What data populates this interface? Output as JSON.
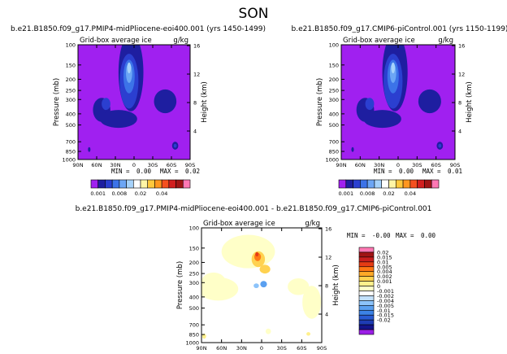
{
  "figure_title": "SON",
  "colors": {
    "top_levels": [
      "#a020f0",
      "#1e1ea0",
      "#2b3fd0",
      "#3c73e8",
      "#6ca6f5",
      "#a6d2fb",
      "#ffffff",
      "#fff5a6",
      "#ffc83c",
      "#ff961e",
      "#f5501e",
      "#d21e1e",
      "#a01414",
      "#ff78b4"
    ],
    "diff_levels": [
      "#9b1ee6",
      "#14148c",
      "#1e3cb4",
      "#285ad2",
      "#3c82e6",
      "#5aa0f0",
      "#8cc3fa",
      "#c3e1fc",
      "#ffffff",
      "#ffffc8",
      "#fff08c",
      "#ffd250",
      "#ffaa28",
      "#ff7814",
      "#e63c14",
      "#c81e1e",
      "#a01414",
      "#ff78b4"
    ]
  },
  "chart_data": [
    {
      "type": "contour",
      "title": "b.e21.B1850.f09_g17.PMIP4-midPliocene-eoi400.001 (yrs 1450-1499)",
      "left_label": "Grid-box average ice",
      "right_label": "g/kg",
      "xlabel": "",
      "ylabel": "Pressure (mb)",
      "y2label": "Height (km)",
      "x_ticks": [
        "90N",
        "60N",
        "30N",
        "0",
        "30S",
        "60S",
        "90S"
      ],
      "y_ticks": [
        1000,
        850,
        700,
        500,
        400,
        300,
        250,
        200,
        150,
        100
      ],
      "y2_ticks": [
        4,
        8,
        12,
        16
      ],
      "min_label": "MIN =",
      "min": "0.00",
      "max_label": "MAX =",
      "max": "0.02",
      "colorbar_labels": [
        "0.001",
        "0.008",
        "0.02",
        "0.04"
      ],
      "blobs": [
        {
          "x": -5,
          "p": 230,
          "rx": 20,
          "rp": 300,
          "level": 1
        },
        {
          "x": -8,
          "p": 240,
          "rx": 15,
          "rp": 240,
          "level": 2
        },
        {
          "x": -8,
          "p": 200,
          "rx": 9,
          "rp": 130,
          "level": 3
        },
        {
          "x": -8,
          "p": 180,
          "rx": 5,
          "rp": 70,
          "level": 4
        },
        {
          "x": -8,
          "p": 160,
          "rx": 3,
          "rp": 35,
          "level": 5
        },
        {
          "x": -52,
          "p": 380,
          "rx": 14,
          "rp": 180,
          "level": 1
        },
        {
          "x": -45,
          "p": 330,
          "rx": 7,
          "rp": 80,
          "level": 2
        },
        {
          "x": 50,
          "p": 320,
          "rx": 18,
          "rp": 150,
          "level": 1
        },
        {
          "x": -25,
          "p": 450,
          "rx": 30,
          "rp": 160,
          "level": 1
        },
        {
          "x": 66,
          "p": 760,
          "rx": 5,
          "rp": 120,
          "level": 1
        },
        {
          "x": 66,
          "p": 760,
          "rx": 2.5,
          "rp": 60,
          "level": 2
        },
        {
          "x": -72,
          "p": 820,
          "rx": 2,
          "rp": 80,
          "level": 1
        }
      ]
    },
    {
      "type": "contour",
      "title": "b.e21.B1850.f09_g17.CMIP6-piControl.001 (yrs 1150-1199)",
      "left_label": "Grid-box average ice",
      "right_label": "g/kg",
      "xlabel": "",
      "ylabel": "Pressure (mb)",
      "y2label": "Height (km)",
      "x_ticks": [
        "90N",
        "60N",
        "30N",
        "0",
        "30S",
        "60S",
        "90S"
      ],
      "y_ticks": [
        1000,
        850,
        700,
        500,
        400,
        300,
        250,
        200,
        150,
        100
      ],
      "y2_ticks": [
        4,
        8,
        12,
        16
      ],
      "min_label": "MIN =",
      "min": "0.00",
      "max_label": "MAX =",
      "max": "0.01",
      "colorbar_labels": [
        "0.001",
        "0.008",
        "0.02",
        "0.04"
      ],
      "blobs": [
        {
          "x": -5,
          "p": 230,
          "rx": 20,
          "rp": 300,
          "level": 1
        },
        {
          "x": -8,
          "p": 240,
          "rx": 15,
          "rp": 240,
          "level": 2
        },
        {
          "x": -8,
          "p": 200,
          "rx": 9,
          "rp": 130,
          "level": 3
        },
        {
          "x": -8,
          "p": 180,
          "rx": 5,
          "rp": 70,
          "level": 4
        },
        {
          "x": -8,
          "p": 160,
          "rx": 3,
          "rp": 35,
          "level": 5
        },
        {
          "x": -52,
          "p": 380,
          "rx": 14,
          "rp": 180,
          "level": 1
        },
        {
          "x": -45,
          "p": 330,
          "rx": 7,
          "rp": 80,
          "level": 2
        },
        {
          "x": 50,
          "p": 320,
          "rx": 18,
          "rp": 150,
          "level": 1
        },
        {
          "x": -25,
          "p": 450,
          "rx": 30,
          "rp": 160,
          "level": 1
        },
        {
          "x": 66,
          "p": 760,
          "rx": 5,
          "rp": 120,
          "level": 1
        },
        {
          "x": 66,
          "p": 760,
          "rx": 2.5,
          "rp": 60,
          "level": 2
        },
        {
          "x": -72,
          "p": 820,
          "rx": 2,
          "rp": 80,
          "level": 1
        }
      ]
    },
    {
      "type": "contour",
      "title": "b.e21.B1850.f09_g17.PMIP4-midPliocene-eoi400.001 - b.e21.B1850.f09_g17.CMIP6-piControl.001",
      "left_label": "Grid-box average ice",
      "right_label": "g/kg",
      "xlabel": "",
      "ylabel": "Pressure (mb)",
      "y2label": "Height (km)",
      "x_ticks": [
        "90N",
        "60N",
        "30N",
        "0",
        "30S",
        "60S",
        "90S"
      ],
      "y_ticks": [
        1000,
        850,
        700,
        500,
        400,
        300,
        250,
        200,
        150,
        100
      ],
      "y2_ticks": [
        4,
        8,
        12,
        16
      ],
      "min_label": "MIN =",
      "min": "-0.00",
      "max_label": "MAX =",
      "max": "0.00",
      "colorbar_labels": [
        "0.02",
        "0.015",
        "0.01",
        "0.005",
        "0.004",
        "0.002",
        "0.001",
        "0",
        "-0.001",
        "-0.002",
        "-0.004",
        "-0.005",
        "-0.01",
        "-0.015",
        "-0.02"
      ],
      "background_level": 8,
      "blobs": [
        {
          "x": -20,
          "p": 170,
          "rx": 40,
          "rp": 110,
          "level": 9
        },
        {
          "x": -5,
          "p": 190,
          "rx": 10,
          "rp": 60,
          "level": 11
        },
        {
          "x": -6,
          "p": 180,
          "rx": 5,
          "rp": 30,
          "level": 13
        },
        {
          "x": -7,
          "p": 170,
          "rx": 2.5,
          "rp": 15,
          "level": 14
        },
        {
          "x": 5,
          "p": 230,
          "rx": 8,
          "rp": 40,
          "level": 11
        },
        {
          "x": 3,
          "p": 310,
          "rx": 5,
          "rp": 40,
          "level": 5
        },
        {
          "x": -8,
          "p": 320,
          "rx": 4,
          "rp": 30,
          "level": 6
        },
        {
          "x": -65,
          "p": 350,
          "rx": 30,
          "rp": 160,
          "level": 9
        },
        {
          "x": -72,
          "p": 300,
          "rx": 18,
          "rp": 110,
          "level": 9
        },
        {
          "x": 55,
          "p": 330,
          "rx": 16,
          "rp": 110,
          "level": 9
        },
        {
          "x": 75,
          "p": 470,
          "rx": 14,
          "rp": 300,
          "level": 9
        },
        {
          "x": -86,
          "p": 880,
          "rx": 3,
          "rp": 90,
          "level": 10
        },
        {
          "x": 70,
          "p": 840,
          "rx": 3,
          "rp": 60,
          "level": 10
        },
        {
          "x": 10,
          "p": 800,
          "rx": 4,
          "rp": 90,
          "level": 9
        }
      ]
    }
  ]
}
